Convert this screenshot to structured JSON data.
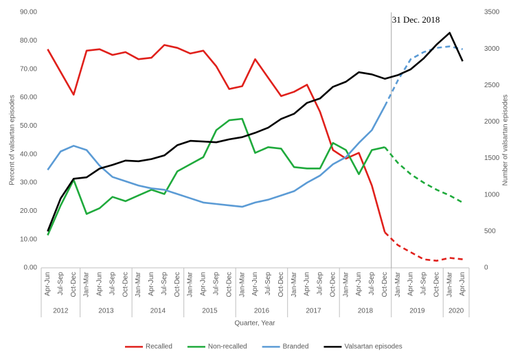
{
  "chart_data": {
    "type": "line",
    "xlabel": "Quarter, Year",
    "ylabel": "Percent of valsartan episodes",
    "y2label": "Number of valsartan episodes",
    "annotation": {
      "text": "31 Dec. 2018",
      "after_category": 26
    },
    "categories": [
      "Apr-Jun",
      "Jul-Sep",
      "Oct-Dec",
      "Jan-Mar",
      "Apr-Jun",
      "Jul-Sep",
      "Oct-Dec",
      "Jan-Mar",
      "Apr-Jun",
      "Jul-Sep",
      "Oct-Dec",
      "Jan-Mar",
      "Apr-Jun",
      "Jul-Sep",
      "Oct-Dec",
      "Jan-Mar",
      "Apr-Jun",
      "Jul-Sep",
      "Oct-Dec",
      "Jan-Mar",
      "Apr-Jun",
      "Jul-Sep",
      "Oct-Dec",
      "Jan-Mar",
      "Apr-Jun",
      "Jul-Sep",
      "Oct-Dec",
      "Jan-Mar",
      "Apr-Jun",
      "Jul-Sep",
      "Oct-Dec",
      "Jan-Mar",
      "Apr-Jun"
    ],
    "x_groups": [
      {
        "label": "2012",
        "size": 3
      },
      {
        "label": "2013",
        "size": 4
      },
      {
        "label": "2014",
        "size": 4
      },
      {
        "label": "2015",
        "size": 4
      },
      {
        "label": "2016",
        "size": 4
      },
      {
        "label": "2017",
        "size": 4
      },
      {
        "label": "2018",
        "size": 4
      },
      {
        "label": "2019",
        "size": 4
      },
      {
        "label": "2020",
        "size": 2
      }
    ],
    "ylim": [
      0,
      90
    ],
    "yticks": [
      {
        "value": 0,
        "label": "0.00"
      },
      {
        "value": 10,
        "label": "10.00"
      },
      {
        "value": 20,
        "label": "20.00"
      },
      {
        "value": 30,
        "label": "30.00"
      },
      {
        "value": 40,
        "label": "40.00"
      },
      {
        "value": 50,
        "label": "50.00"
      },
      {
        "value": 60,
        "label": "60.00"
      },
      {
        "value": 70,
        "label": "70.00"
      },
      {
        "value": 80,
        "label": "80.00"
      },
      {
        "value": 90,
        "label": "90.00"
      }
    ],
    "y2lim": [
      0,
      3500
    ],
    "y2ticks": [
      0,
      500,
      1000,
      1500,
      2000,
      2500,
      3000,
      3500
    ],
    "legend": "bottom",
    "series": [
      {
        "name": "Recalled",
        "color": "#e0201b",
        "dashed_from": 26,
        "values": [
          77,
          69,
          61,
          76.5,
          77,
          75,
          76,
          73.5,
          74,
          78.5,
          77.5,
          75.5,
          76.5,
          71,
          63,
          64,
          73.5,
          67,
          60.5,
          62,
          64.5,
          55,
          41.5,
          38.5,
          40.5,
          29,
          12.5,
          8,
          5.5,
          3,
          2.5,
          3.5,
          3
        ]
      },
      {
        "name": "Non-recalled",
        "color": "#1faa3c",
        "dashed_from": 26,
        "values": [
          11.5,
          22,
          31,
          19,
          21,
          25,
          23.5,
          25.5,
          27.5,
          26,
          34,
          36.5,
          39,
          48.5,
          52,
          52.5,
          40.5,
          42.5,
          42,
          35.5,
          35,
          35,
          44,
          41.5,
          33,
          41.5,
          42.5,
          37,
          33,
          30,
          27.5,
          25.5,
          23
        ]
      },
      {
        "name": "Branded",
        "color": "#5b9bd5",
        "dashed_from": 26,
        "values": [
          34.5,
          41,
          43,
          41.5,
          36,
          32,
          30.5,
          29,
          28,
          27.5,
          26,
          24.5,
          23,
          22.5,
          22,
          21.5,
          23,
          24,
          25.5,
          27,
          30,
          32.5,
          36.5,
          39,
          44,
          48.5,
          57,
          66,
          73.5,
          76,
          77.5,
          78,
          77
        ]
      },
      {
        "name": "Valsartan episodes",
        "color": "#000000",
        "axis": "y2",
        "values": [
          500,
          950,
          1220,
          1240,
          1360,
          1410,
          1470,
          1460,
          1490,
          1540,
          1680,
          1740,
          1730,
          1720,
          1760,
          1790,
          1850,
          1920,
          2040,
          2110,
          2260,
          2320,
          2480,
          2550,
          2680,
          2650,
          2590,
          2640,
          2720,
          2870,
          3060,
          3220,
          2830
        ]
      }
    ]
  }
}
